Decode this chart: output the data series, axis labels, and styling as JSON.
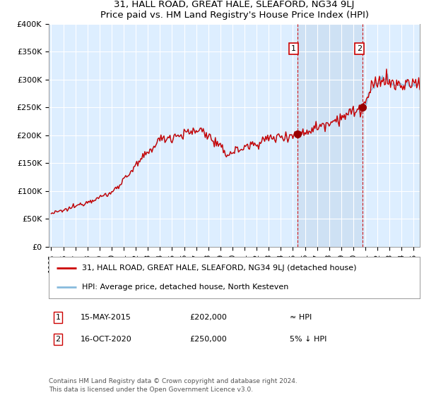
{
  "title": "31, HALL ROAD, GREAT HALE, SLEAFORD, NG34 9LJ",
  "subtitle": "Price paid vs. HM Land Registry's House Price Index (HPI)",
  "ylabel_ticks": [
    "£0",
    "£50K",
    "£100K",
    "£150K",
    "£200K",
    "£250K",
    "£300K",
    "£350K",
    "£400K"
  ],
  "ylim": [
    0,
    400000
  ],
  "xlim_start": 1994.8,
  "xlim_end": 2025.5,
  "marker1_x": 2015.37,
  "marker1_y": 202000,
  "marker1_label": "15-MAY-2015",
  "marker1_value": "£202,000",
  "marker1_note": "≈ HPI",
  "marker2_x": 2020.79,
  "marker2_y": 250000,
  "marker2_label": "16-OCT-2020",
  "marker2_value": "£250,000",
  "marker2_note": "5% ↓ HPI",
  "legend_line1": "31, HALL ROAD, GREAT HALE, SLEAFORD, NG34 9LJ (detached house)",
  "legend_line2": "HPI: Average price, detached house, North Kesteven",
  "footer": "Contains HM Land Registry data © Crown copyright and database right 2024.\nThis data is licensed under the Open Government Licence v3.0.",
  "plot_bg_color": "#ddeeff",
  "shade_color": "#c8dcf0",
  "grid_color": "#ffffff",
  "red_color": "#cc0000",
  "blue_color": "#88bbdd",
  "marker_box_color": "#cc0000",
  "marker_dot_color": "#990000"
}
